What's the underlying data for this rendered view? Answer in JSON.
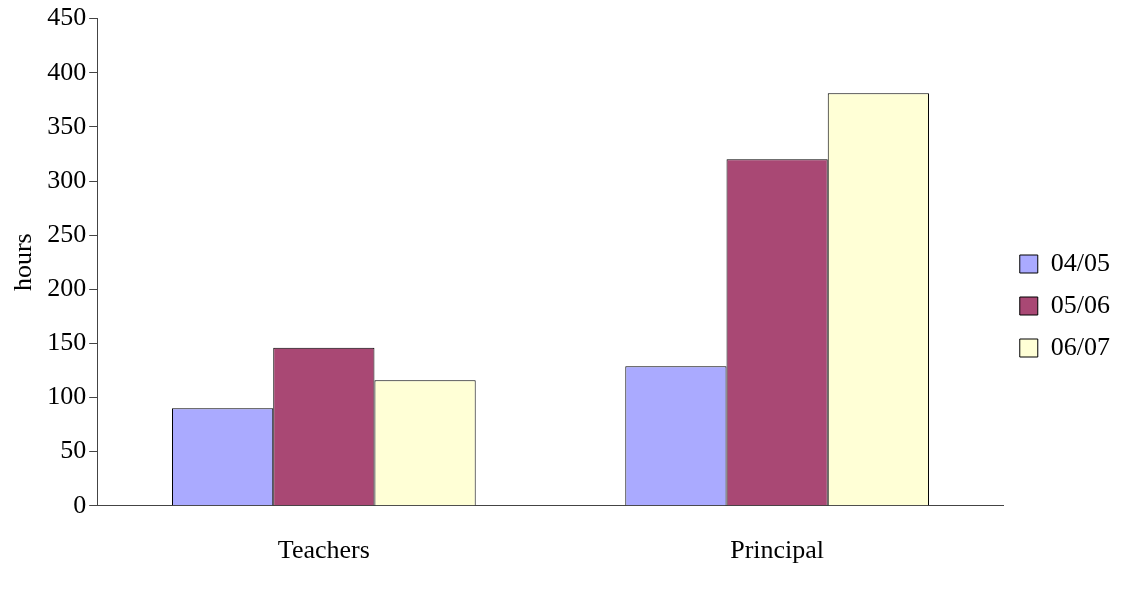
{
  "chart_data": {
    "type": "bar",
    "ylabel": "hours",
    "categories": [
      "Teachers",
      "Principal"
    ],
    "series": [
      {
        "name": "04/05",
        "color": "#aaaaff",
        "values": [
          90,
          129
        ]
      },
      {
        "name": "05/06",
        "color": "#a94874",
        "values": [
          146,
          320
        ]
      },
      {
        "name": "06/07",
        "color": "#ffffd6",
        "values": [
          116,
          381
        ]
      }
    ],
    "ylim": [
      0,
      450
    ],
    "yticks": [
      0,
      50,
      100,
      150,
      200,
      250,
      300,
      350,
      400,
      450
    ],
    "legend": "right"
  }
}
